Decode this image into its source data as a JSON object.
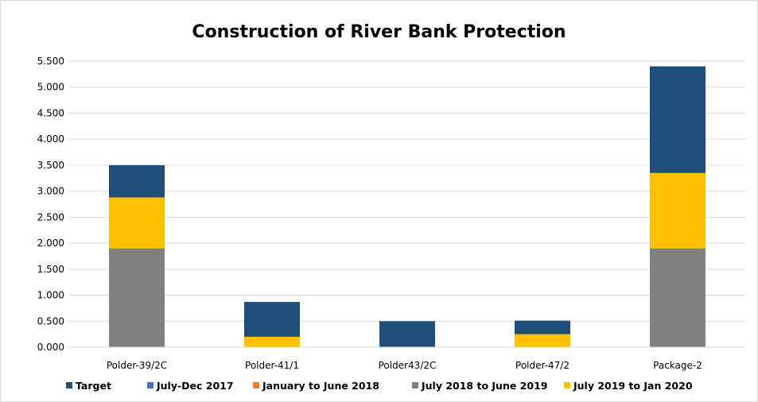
{
  "chart_data": {
    "type": "bar",
    "stacked": true,
    "title": "Construction of River Bank Protection",
    "xlabel": "",
    "ylabel": "",
    "ylim": [
      0,
      5.5
    ],
    "ytick_step": 0.5,
    "yticks": [
      "0.000",
      "0.500",
      "1.000",
      "1.500",
      "2.000",
      "2.500",
      "3.000",
      "3.500",
      "4.000",
      "4.500",
      "5.000",
      "5.500"
    ],
    "categories": [
      "Polder-39/2C",
      "Polder-41/1",
      "Polder43/2C",
      "Polder-47/2",
      "Package-2"
    ],
    "series": [
      {
        "name": "July 2018 to June 2019",
        "color": "#808080",
        "values": [
          1.9,
          0,
          0,
          0,
          1.9
        ]
      },
      {
        "name": "July 2019 to Jan 2020",
        "color": "#ffc000",
        "values": [
          0.98,
          0.2,
          0,
          0.25,
          1.45
        ]
      },
      {
        "name": "July-Dec 2017",
        "color": "#4472c4",
        "values": [
          0,
          0,
          0,
          0,
          0
        ]
      },
      {
        "name": "January  to June 2018",
        "color": "#ed7d31",
        "values": [
          0,
          0,
          0,
          0,
          0
        ]
      },
      {
        "name": "Target",
        "color": "#1f4e79",
        "values": [
          0.62,
          0.67,
          0.5,
          0.26,
          2.05
        ]
      }
    ],
    "legend": {
      "position": "bottom",
      "order": [
        "Target",
        "July-Dec 2017",
        "January  to June 2018",
        "July 2018 to June 2019",
        "July 2019 to Jan 2020"
      ]
    },
    "grid": true
  }
}
